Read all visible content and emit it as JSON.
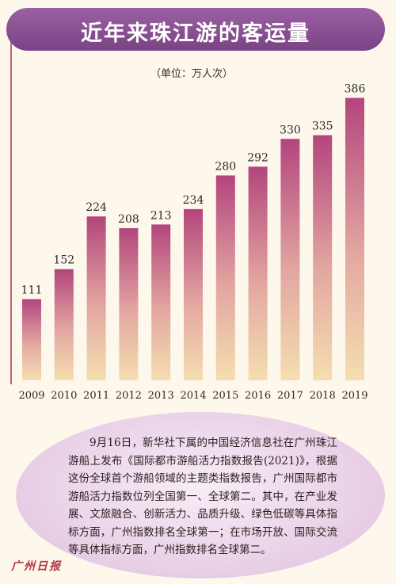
{
  "title": "近年来珠江游的客运量",
  "unit_label": "（单位：万人次）",
  "chart_data": {
    "type": "bar",
    "title": "近年来珠江游的客运量",
    "ylabel": "（单位：万人次）",
    "categories": [
      "2009",
      "2010",
      "2011",
      "2012",
      "2013",
      "2014",
      "2015",
      "2016",
      "2017",
      "2018",
      "2019"
    ],
    "values": [
      111,
      152,
      224,
      208,
      213,
      234,
      280,
      292,
      330,
      335,
      386
    ],
    "ylim": [
      0,
      400
    ],
    "grid": false,
    "legend": "none"
  },
  "note": "9月16日，新华社下属的中国经济信息社在广州珠江游船上发布《国际都市游船活力指数报告(2021)》，根据这份全球首个游船领域的主题类指数报告，广州国际都市游船活力指数位列全国第一、全球第二。其中，在产业发展、文旅融合、创新活力、品质升级、绿色低碳等具体指标方面，广州指数排名全球第一；在市场开放、国际交流等具体指标方面，广州指数排名全球第二。",
  "logo": "广州日报",
  "colors": {
    "banner": "#8b529a",
    "bar_top": "#b3457d",
    "bar_bottom": "#f4deb0",
    "accent": "#b0353e"
  }
}
